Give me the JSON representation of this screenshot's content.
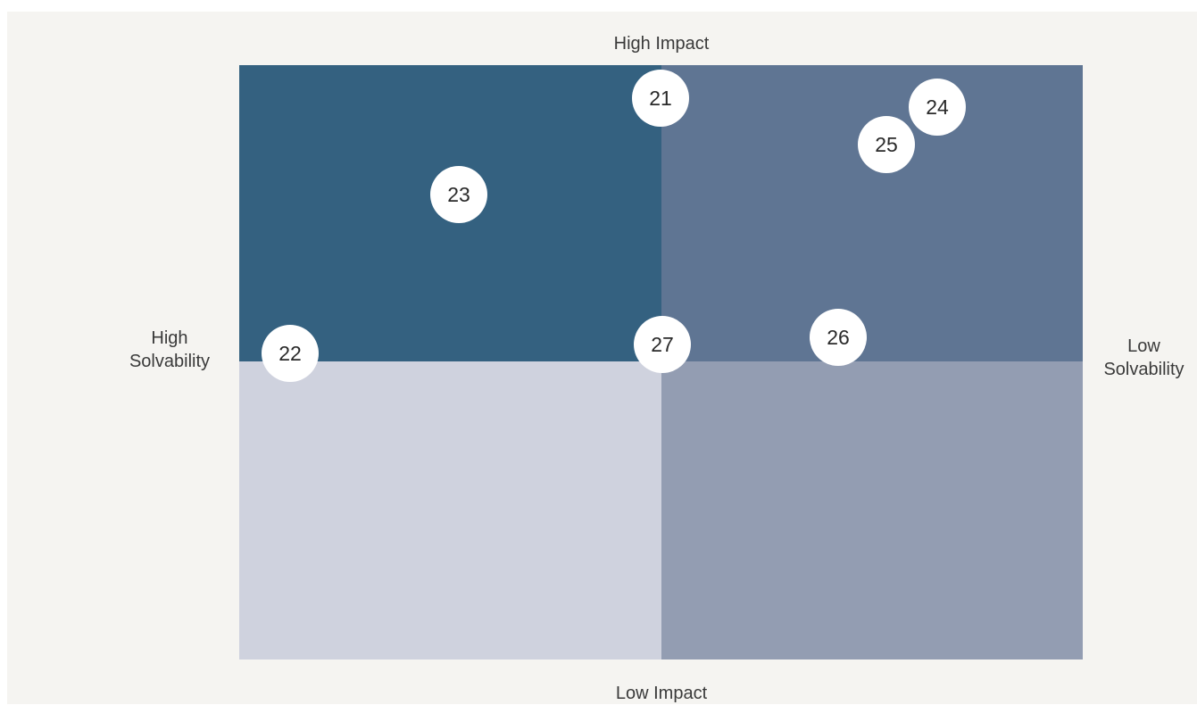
{
  "axes": {
    "top": "High Impact",
    "bottom": "Low Impact",
    "left": [
      "High",
      "Solvability"
    ],
    "right": [
      "Low",
      "Solvability"
    ]
  },
  "colors": {
    "background": "#f5f4f1",
    "top_left": "#346180",
    "top_right": "#5f7593",
    "bottom_left": "#cfd2de",
    "bottom_right": "#939db2",
    "marker": "#ffffff"
  },
  "markers": [
    {
      "label": "21"
    },
    {
      "label": "24"
    },
    {
      "label": "25"
    },
    {
      "label": "23"
    },
    {
      "label": "22"
    },
    {
      "label": "27"
    },
    {
      "label": "26"
    }
  ]
}
